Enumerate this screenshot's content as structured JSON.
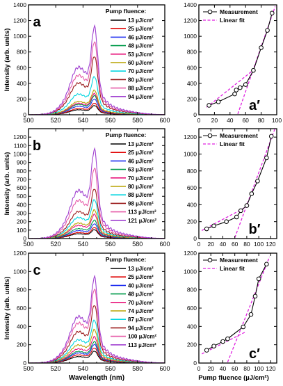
{
  "figure": {
    "spectra_xlabel": "Wavelength (nm)",
    "fluence_xlabel": "Pump fluence (µJ/cm²)",
    "ylabel": "Intensity (arb. units)"
  },
  "chart_data": [
    {
      "panel": "a",
      "type": "line",
      "xlabel": "",
      "ylabel": "Intensity (arb. units)",
      "xlim": [
        500,
        600
      ],
      "ylim": [
        0,
        1400
      ],
      "xticks": [
        500,
        520,
        540,
        560,
        580,
        600
      ],
      "yticks": [
        0,
        200,
        400,
        600,
        800,
        1000,
        1200,
        1400
      ],
      "legend_title": "Pump fluence:",
      "legend_position": "top-right",
      "series": [
        {
          "name": "13 µJ/cm²",
          "color": "#000000",
          "peak": 135
        },
        {
          "name": "25 µJ/cm²",
          "color": "#e00000",
          "peak": 170
        },
        {
          "name": "46 µJ/cm²",
          "color": "#1f2ff0",
          "peak": 230
        },
        {
          "name": "48 µJ/cm²",
          "color": "#009a4a",
          "peak": 280
        },
        {
          "name": "53 µJ/cm²",
          "color": "#e8147a",
          "peak": 310
        },
        {
          "name": "60 µJ/cm²",
          "color": "#b9a300",
          "peak": 360
        },
        {
          "name": "70 µJ/cm²",
          "color": "#00d5e0",
          "peak": 560
        },
        {
          "name": "80 µJ/cm²",
          "color": "#9a1a1a",
          "peak": 860
        },
        {
          "name": "88 µJ/cm²",
          "color": "#e65aa8",
          "peak": 1070
        },
        {
          "name": "94 µJ/cm²",
          "color": "#a040d0",
          "peak": 1290
        }
      ]
    },
    {
      "panel": "a′",
      "type": "scatter",
      "xlabel": "",
      "ylabel": "",
      "xlim": [
        0,
        100
      ],
      "ylim": [
        0,
        1400
      ],
      "xticks": [
        0,
        20,
        40,
        60,
        80,
        100
      ],
      "yticks": [
        0,
        200,
        400,
        600,
        800,
        1000,
        1200,
        1400
      ],
      "legend_position": "top-left",
      "series": [
        {
          "name": "Measurement",
          "x": [
            13,
            25,
            46,
            48,
            53,
            60,
            70,
            80,
            88,
            94
          ],
          "y": [
            120,
            165,
            265,
            315,
            345,
            385,
            565,
            855,
            1075,
            1295
          ]
        },
        {
          "name": "Linear fit",
          "segments": [
            {
              "x": [
                10,
                72
              ],
              "y": [
                95,
                585
              ]
            },
            {
              "x": [
                50,
                98
              ],
              "y": [
                10,
                1380
              ]
            }
          ]
        }
      ]
    },
    {
      "panel": "b",
      "type": "line",
      "xlabel": "",
      "ylabel": "Intensity (arb. units)",
      "xlim": [
        500,
        600
      ],
      "ylim": [
        0,
        1300
      ],
      "xticks": [
        500,
        520,
        540,
        560,
        580,
        600
      ],
      "yticks": [
        0,
        100,
        200,
        300,
        400,
        500,
        600,
        700,
        800,
        900,
        1000,
        1100,
        1200
      ],
      "legend_title": "Pump fluence:",
      "legend_position": "top-right",
      "series": [
        {
          "name": "13 µJ/cm²",
          "color": "#000000",
          "peak": 120
        },
        {
          "name": "25 µJ/cm²",
          "color": "#e00000",
          "peak": 150
        },
        {
          "name": "46 µJ/cm²",
          "color": "#1f2ff0",
          "peak": 200
        },
        {
          "name": "63 µJ/cm²",
          "color": "#009a4a",
          "peak": 250
        },
        {
          "name": "70 µJ/cm²",
          "color": "#e8147a",
          "peak": 330
        },
        {
          "name": "80 µJ/cm²",
          "color": "#b9a300",
          "peak": 390
        },
        {
          "name": "88 µJ/cm²",
          "color": "#00d5e0",
          "peak": 530
        },
        {
          "name": "98 µJ/cm²",
          "color": "#9a1a1a",
          "peak": 680
        },
        {
          "name": "113 µJ/cm²",
          "color": "#e65aa8",
          "peak": 960
        },
        {
          "name": "121 µJ/cm²",
          "color": "#a040d0",
          "peak": 1210
        }
      ]
    },
    {
      "panel": "b′",
      "type": "scatter",
      "xlabel": "",
      "ylabel": "",
      "xlim": [
        0,
        130
      ],
      "ylim": [
        0,
        1300
      ],
      "xticks": [
        0,
        20,
        40,
        60,
        80,
        100,
        120
      ],
      "yticks": [
        0,
        200,
        400,
        600,
        800,
        1000,
        1200
      ],
      "legend_position": "top-left",
      "series": [
        {
          "name": "Measurement",
          "x": [
            13,
            25,
            46,
            63,
            70,
            80,
            88,
            98,
            113,
            121
          ],
          "y": [
            115,
            150,
            200,
            255,
            330,
            390,
            530,
            680,
            955,
            1210
          ]
        },
        {
          "name": "Linear fit",
          "segments": [
            {
              "x": [
                5,
                78
              ],
              "y": [
                95,
                370
              ]
            },
            {
              "x": [
                60,
                127
              ],
              "y": [
                10,
                1300
              ]
            }
          ]
        }
      ]
    },
    {
      "panel": "c",
      "type": "line",
      "xlabel": "Wavelength (nm)",
      "ylabel": "Intensity (arb. units)",
      "xlim": [
        500,
        600
      ],
      "ylim": [
        0,
        1200
      ],
      "xticks": [
        500,
        520,
        540,
        560,
        580,
        600
      ],
      "yticks": [
        0,
        200,
        400,
        600,
        800,
        1000,
        1200
      ],
      "legend_title": "Pump fluence:",
      "legend_position": "top-right",
      "series": [
        {
          "name": "13 µJ/cm²",
          "color": "#000000",
          "peak": 150
        },
        {
          "name": "25 µJ/cm²",
          "color": "#e00000",
          "peak": 190
        },
        {
          "name": "40 µJ/cm²",
          "color": "#1f2ff0",
          "peak": 235
        },
        {
          "name": "48 µJ/cm²",
          "color": "#009a4a",
          "peak": 270
        },
        {
          "name": "70 µJ/cm²",
          "color": "#e8147a",
          "peak": 330
        },
        {
          "name": "74 µJ/cm²",
          "color": "#b9a300",
          "peak": 420
        },
        {
          "name": "87 µJ/cm²",
          "color": "#00d5e0",
          "peak": 540
        },
        {
          "name": "94 µJ/cm²",
          "color": "#9a1a1a",
          "peak": 730
        },
        {
          "name": "100 µJ/cm²",
          "color": "#e65aa8",
          "peak": 930
        },
        {
          "name": "113 µJ/cm²",
          "color": "#a040d0",
          "peak": 1080
        }
      ]
    },
    {
      "panel": "c′",
      "type": "scatter",
      "xlabel": "Pump fluence (µJ/cm²)",
      "ylabel": "",
      "xlim": [
        0,
        130
      ],
      "ylim": [
        0,
        1200
      ],
      "xticks": [
        0,
        20,
        40,
        60,
        80,
        100,
        120
      ],
      "yticks": [
        0,
        200,
        400,
        600,
        800,
        1000,
        1200
      ],
      "legend_position": "top-left",
      "series": [
        {
          "name": "Measurement",
          "x": [
            13,
            25,
            40,
            48,
            74,
            87,
            94,
            100,
            113
          ],
          "y": [
            140,
            185,
            235,
            265,
            395,
            530,
            730,
            920,
            1080
          ]
        },
        {
          "name": "Linear fit",
          "segments": [
            {
              "x": [
                5,
                78
              ],
              "y": [
                100,
                340
              ]
            },
            {
              "x": [
                48,
                118
              ],
              "y": [
                10,
                1160
              ]
            }
          ]
        }
      ]
    }
  ]
}
